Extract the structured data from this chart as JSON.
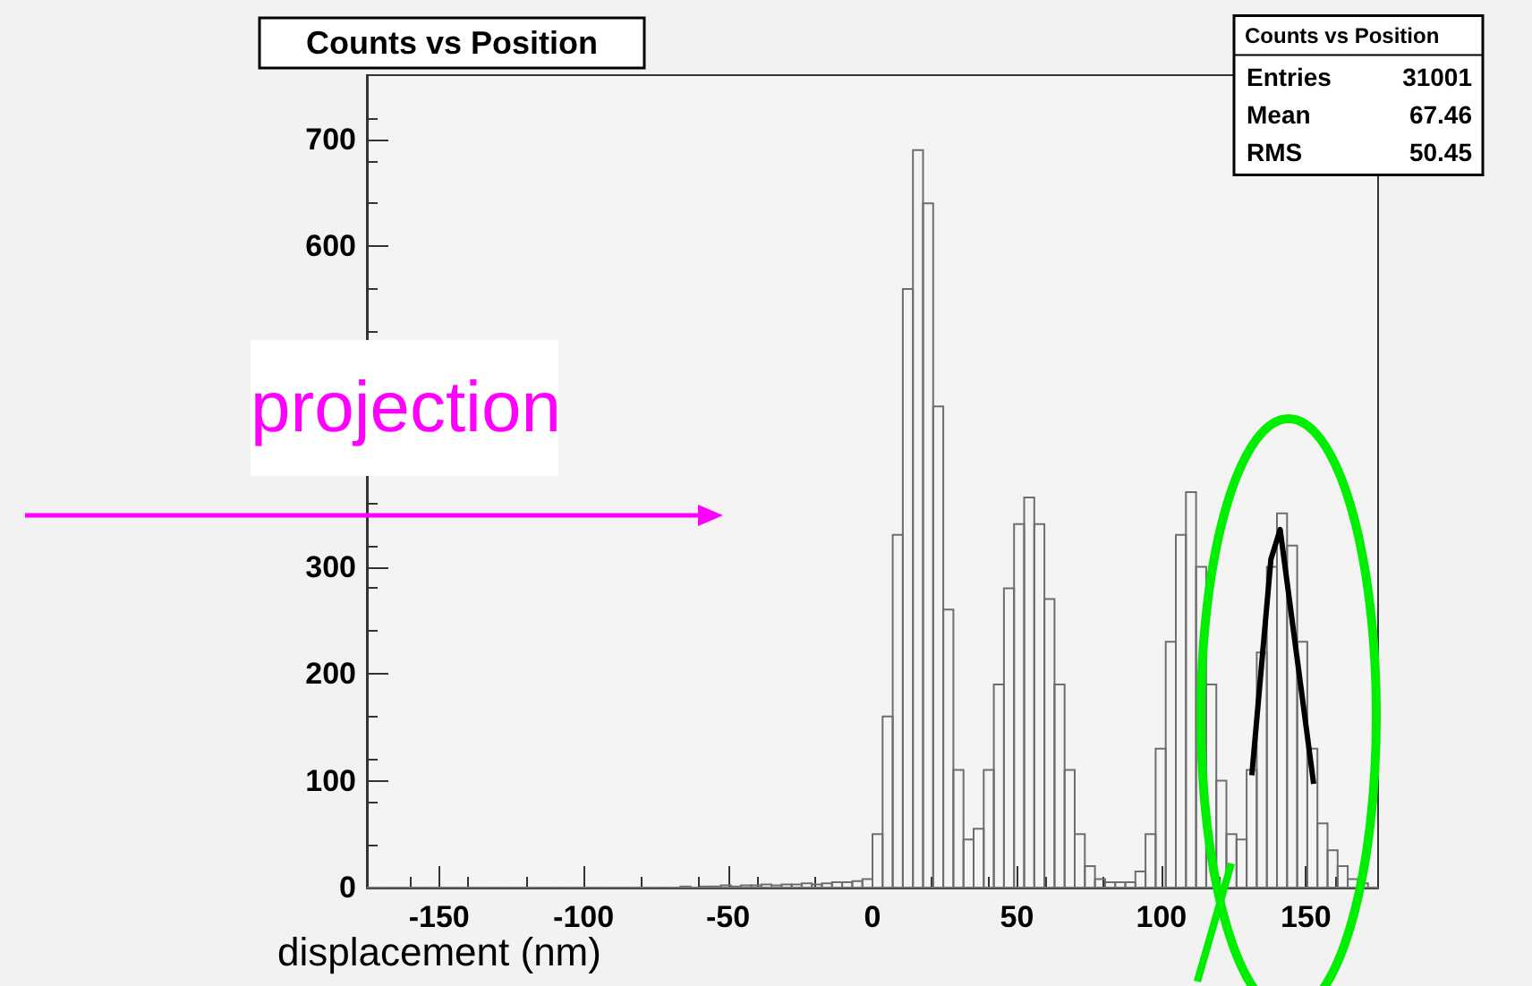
{
  "chart_data": {
    "type": "histogram",
    "title": "Counts vs Position",
    "xlabel": "displacement (nm)",
    "annotations": [
      "Counts vs Position",
      "Entries 31001",
      "Mean 67.46",
      "RMS 50.45",
      "projection"
    ],
    "bins": [
      -175,
      -171.5,
      -168,
      -164.5,
      -161,
      -157.5,
      -154,
      -150.5,
      -147,
      -143.5,
      -140,
      -136.5,
      -133,
      -129.5,
      -126,
      -122.5,
      -119,
      -115.5,
      -112,
      -108.5,
      -105,
      -101.5,
      -98,
      -94.5,
      -91,
      -87.5,
      -84,
      -80.5,
      -77,
      -73.5,
      -70,
      -66.5,
      -63,
      -59.5,
      -56,
      -52.5,
      -49,
      -45.5,
      -42,
      -38.5,
      -35,
      -31.5,
      -28,
      -24.5,
      -21,
      -17.5,
      -14,
      -10.5,
      -7,
      -3.5,
      0,
      3.5,
      7,
      10.5,
      14,
      17.5,
      21,
      24.5,
      28,
      31.5,
      35,
      38.5,
      42,
      45.5,
      49,
      52.5,
      56,
      59.5,
      63,
      66.5,
      70,
      73.5,
      77,
      80.5,
      84,
      87.5,
      91,
      94.5,
      98,
      101.5,
      105,
      108.5,
      112,
      115.5,
      119,
      122.5,
      126,
      129.5,
      133,
      136.5,
      140,
      143.5,
      147,
      150.5,
      154,
      157.5,
      161,
      164.5,
      168,
      171.5,
      175
    ],
    "series": [
      {
        "color": "#6e6e6e",
        "values": [
          0,
          0,
          0,
          0,
          0,
          0,
          0,
          0,
          0,
          0,
          0,
          0,
          0,
          0,
          0,
          0,
          0,
          0,
          0,
          0,
          0,
          0,
          0,
          0,
          0,
          0,
          0,
          0,
          0,
          0,
          0,
          1,
          0,
          1,
          1,
          2,
          1,
          2,
          2,
          3,
          2,
          3,
          3,
          4,
          3,
          4,
          5,
          5,
          6,
          8,
          50,
          160,
          330,
          560,
          690,
          640,
          450,
          260,
          110,
          45,
          55,
          110,
          190,
          280,
          340,
          365,
          340,
          270,
          190,
          110,
          50,
          20,
          8,
          5,
          5,
          5,
          15,
          50,
          130,
          230,
          330,
          370,
          300,
          190,
          100,
          50,
          45,
          110,
          220,
          300,
          350,
          320,
          230,
          130,
          60,
          35,
          20,
          8,
          4,
          0
        ]
      },
      {
        "type": "line",
        "color": "#000000",
        "x": [
          131.3,
          137.9,
          141.1,
          152.7
        ],
        "values": [
          105,
          307,
          335,
          97
        ]
      }
    ],
    "xlim": [
      -175,
      175
    ],
    "xticks": [
      -150,
      -100,
      -50,
      0,
      50,
      100,
      150
    ],
    "ylim": [
      0,
      760
    ],
    "yticks": [
      0,
      100,
      200,
      300,
      600,
      700
    ],
    "grid": false
  }
}
